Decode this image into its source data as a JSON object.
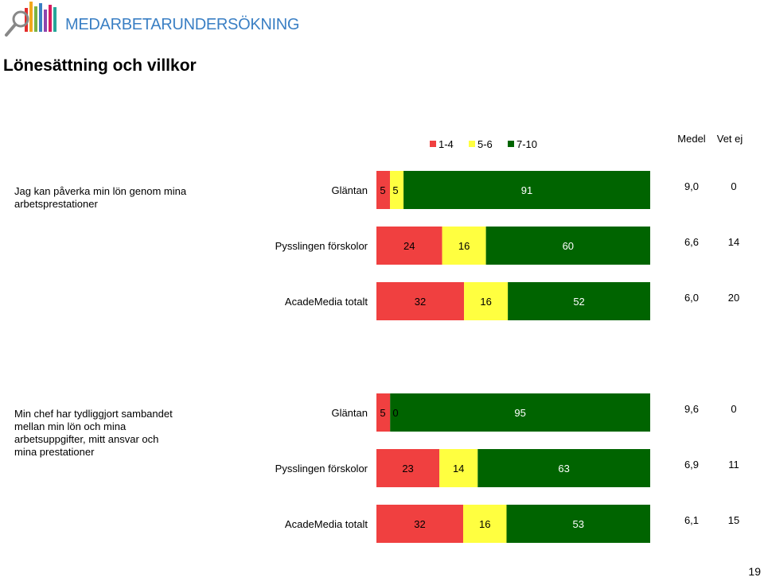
{
  "header": {
    "brand": "MEDARBETARUNDERSÖKNING",
    "logo_icon": "magnifier-bars-icon"
  },
  "page": {
    "title": "Lönesättning och villkor",
    "number": "19"
  },
  "colors": {
    "low": "#f04040",
    "mid": "#ffff40",
    "high": "#006400",
    "brand": "#3a7fc4"
  },
  "chart_data": {
    "type": "bar",
    "stacked": true,
    "orientation": "horizontal",
    "legend": {
      "placement": "top-right",
      "entries": [
        "1-4",
        "5-6",
        "7-10"
      ]
    },
    "extra_columns": [
      "Medel",
      "Vet ej"
    ],
    "questions": [
      {
        "label": "Jag kan påverka  min lön genom  mina arbetsprestationer",
        "rows": [
          {
            "group": "Gläntan",
            "values": [
              5,
              5,
              91
            ],
            "labels": [
              "5",
              "5",
              "91"
            ],
            "medel": "9,0",
            "vet_ej": "0"
          },
          {
            "group": "Pysslingen förskolor",
            "values": [
              24,
              16,
              60
            ],
            "labels": [
              "24",
              "16",
              "60"
            ],
            "medel": "6,6",
            "vet_ej": "14"
          },
          {
            "group": "AcadeMedia totalt",
            "values": [
              32,
              16,
              52
            ],
            "labels": [
              "32",
              "16",
              "52"
            ],
            "medel": "6,0",
            "vet_ej": "20"
          }
        ]
      },
      {
        "label": "Min chef har tydliggjort sambandet mellan min lön och mina arbetsuppgifter,  mitt ansvar och mina prestationer",
        "rows": [
          {
            "group": "Gläntan",
            "values": [
              5,
              0,
              95
            ],
            "labels": [
              "5",
              "0",
              "95"
            ],
            "medel": "9,6",
            "vet_ej": "0"
          },
          {
            "group": "Pysslingen förskolor",
            "values": [
              23,
              14,
              63
            ],
            "labels": [
              "23",
              "14",
              "63"
            ],
            "medel": "6,9",
            "vet_ej": "11"
          },
          {
            "group": "AcadeMedia totalt",
            "values": [
              32,
              16,
              53
            ],
            "labels": [
              "32",
              "16",
              "53"
            ],
            "medel": "6,1",
            "vet_ej": "15"
          }
        ]
      }
    ]
  }
}
